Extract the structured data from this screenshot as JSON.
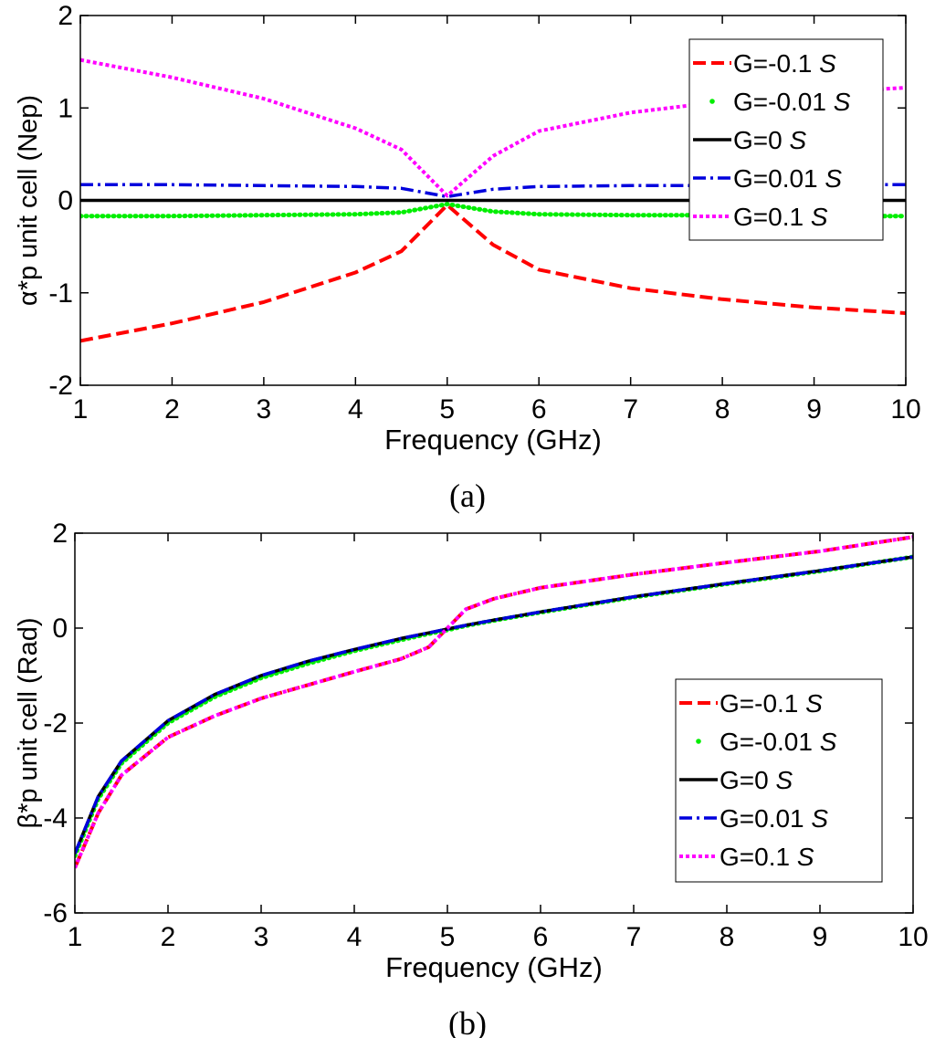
{
  "chart_data": [
    {
      "type": "line",
      "panel": "a",
      "caption": "(a)",
      "xlabel": "Frequency (GHz)",
      "ylabel": "α*p unit cell (Nep)",
      "xlim": [
        1,
        10
      ],
      "ylim": [
        -2,
        2
      ],
      "xticks": [
        1,
        2,
        3,
        4,
        5,
        6,
        7,
        8,
        9,
        10
      ],
      "yticks": [
        -2,
        -1,
        0,
        1,
        2
      ],
      "grid": false,
      "legend_position": "top-right",
      "x": [
        1,
        2,
        3,
        4,
        4.5,
        5,
        5.5,
        6,
        7,
        8,
        9,
        10
      ],
      "series": [
        {
          "name": "G=-0.1 ",
          "unit": "S",
          "color": "#ff0000",
          "style": "dashed",
          "values": [
            -1.52,
            -1.33,
            -1.1,
            -0.78,
            -0.55,
            -0.05,
            -0.48,
            -0.75,
            -0.95,
            -1.07,
            -1.16,
            -1.22
          ]
        },
        {
          "name": "G=-0.01 ",
          "unit": "S",
          "color": "#00ee00",
          "style": "dots",
          "values": [
            -0.17,
            -0.17,
            -0.16,
            -0.15,
            -0.13,
            -0.04,
            -0.12,
            -0.15,
            -0.16,
            -0.16,
            -0.17,
            -0.17
          ]
        },
        {
          "name": "G=0 ",
          "unit": "S",
          "color": "#000000",
          "style": "solid",
          "values": [
            0,
            0,
            0,
            0,
            0,
            0,
            0,
            0,
            0,
            0,
            0,
            0
          ]
        },
        {
          "name": "G=0.01 ",
          "unit": "S",
          "color": "#0000dd",
          "style": "dashdot",
          "values": [
            0.17,
            0.17,
            0.16,
            0.15,
            0.13,
            0.04,
            0.12,
            0.15,
            0.16,
            0.16,
            0.17,
            0.17
          ]
        },
        {
          "name": "G=0.1 ",
          "unit": "S",
          "color": "#ff00ff",
          "style": "dotted",
          "values": [
            1.52,
            1.33,
            1.1,
            0.78,
            0.55,
            0.05,
            0.48,
            0.75,
            0.95,
            1.07,
            1.16,
            1.22
          ]
        }
      ]
    },
    {
      "type": "line",
      "panel": "b",
      "caption": "(b)",
      "xlabel": "Frequency (GHz)",
      "ylabel": "β*p unit cell (Rad)",
      "xlim": [
        1,
        10
      ],
      "ylim": [
        -6,
        2
      ],
      "xticks": [
        1,
        2,
        3,
        4,
        5,
        6,
        7,
        8,
        9,
        10
      ],
      "yticks": [
        -6,
        -4,
        -2,
        0,
        2
      ],
      "grid": false,
      "legend_position": "right",
      "x": [
        1,
        1.25,
        1.5,
        2,
        2.5,
        3,
        3.5,
        4,
        4.5,
        4.8,
        5,
        5.2,
        5.5,
        6,
        7,
        8,
        9,
        10
      ],
      "series": [
        {
          "name": "G=-0.1 ",
          "unit": "S",
          "color": "#ff0000",
          "style": "dashed",
          "values": [
            -5.05,
            -3.9,
            -3.1,
            -2.3,
            -1.85,
            -1.48,
            -1.2,
            -0.92,
            -0.65,
            -0.4,
            0,
            0.4,
            0.62,
            0.85,
            1.13,
            1.38,
            1.62,
            1.92
          ]
        },
        {
          "name": "G=-0.01 ",
          "unit": "S",
          "color": "#00ee00",
          "style": "dots",
          "values": [
            -4.8,
            -3.6,
            -2.85,
            -2.0,
            -1.45,
            -1.05,
            -0.75,
            -0.48,
            -0.25,
            -0.12,
            -0.04,
            0.05,
            0.16,
            0.33,
            0.65,
            0.93,
            1.2,
            1.5
          ]
        },
        {
          "name": "G=0 ",
          "unit": "S",
          "color": "#000000",
          "style": "solid",
          "values": [
            -4.75,
            -3.55,
            -2.8,
            -1.95,
            -1.4,
            -1.0,
            -0.7,
            -0.45,
            -0.22,
            -0.1,
            -0.02,
            0.06,
            0.17,
            0.34,
            0.66,
            0.94,
            1.21,
            1.5
          ]
        },
        {
          "name": "G=0.01 ",
          "unit": "S",
          "color": "#0000dd",
          "style": "dashdot",
          "values": [
            -4.75,
            -3.55,
            -2.8,
            -1.95,
            -1.4,
            -1.0,
            -0.7,
            -0.45,
            -0.22,
            -0.1,
            -0.02,
            0.06,
            0.17,
            0.34,
            0.66,
            0.94,
            1.21,
            1.5
          ]
        },
        {
          "name": "G=0.1 ",
          "unit": "S",
          "color": "#ff00ff",
          "style": "dotted",
          "values": [
            -5.05,
            -3.9,
            -3.1,
            -2.3,
            -1.85,
            -1.48,
            -1.2,
            -0.92,
            -0.65,
            -0.4,
            0,
            0.4,
            0.62,
            0.85,
            1.13,
            1.38,
            1.62,
            1.92
          ]
        }
      ]
    }
  ]
}
